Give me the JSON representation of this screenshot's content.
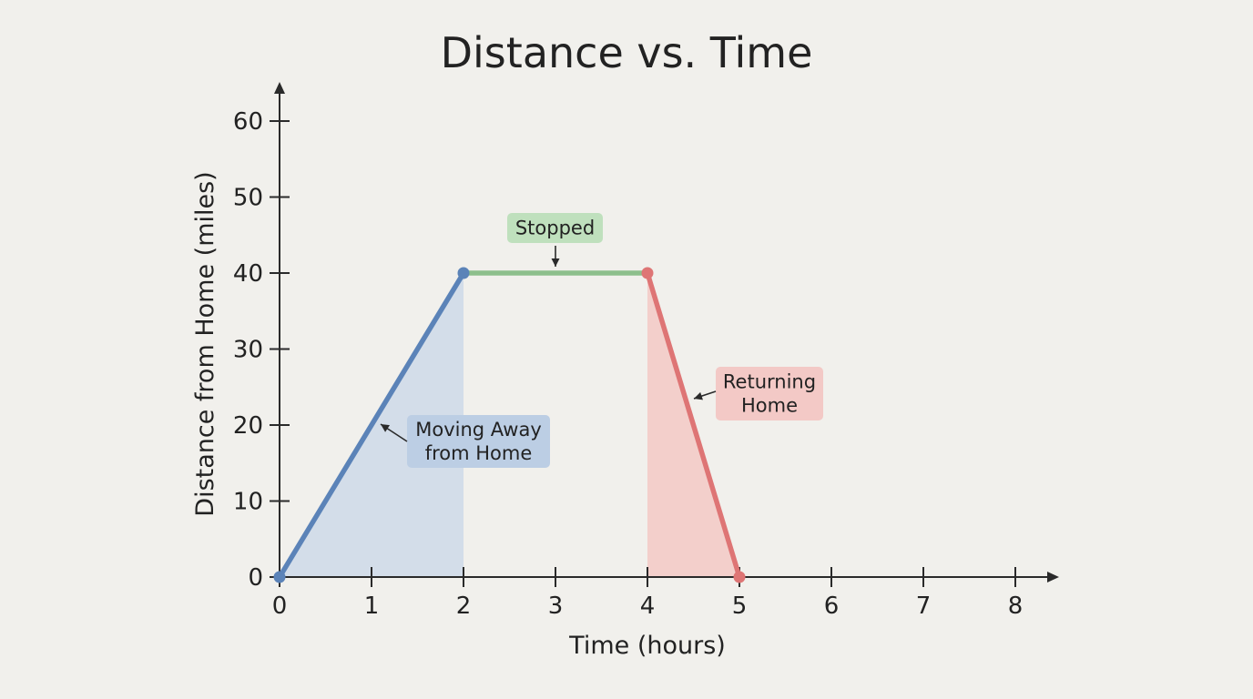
{
  "chart_data": {
    "type": "line",
    "title": "Distance vs. Time",
    "xlabel": "Time (hours)",
    "ylabel": "Distance from Home (miles)",
    "xlim": [
      0,
      8
    ],
    "ylim": [
      0,
      60
    ],
    "x_ticks": [
      0,
      1,
      2,
      3,
      4,
      5,
      6,
      7,
      8
    ],
    "y_ticks": [
      0,
      10,
      20,
      30,
      40,
      50,
      60
    ],
    "grid": false,
    "series": [
      {
        "color": "#5b83b8",
        "fill": "#d3dde9",
        "x": [
          0,
          2
        ],
        "y": [
          0,
          40
        ]
      },
      {
        "color": "#8dbf8c",
        "x": [
          2,
          4
        ],
        "y": [
          40,
          40
        ]
      },
      {
        "color": "#de7575",
        "fill": "#f3cfcb",
        "x": [
          4,
          5
        ],
        "y": [
          40,
          0
        ]
      }
    ],
    "annotations": [
      {
        "lines": [
          "Stopped"
        ],
        "bg": "#bfe0bd",
        "target": [
          3,
          40
        ]
      },
      {
        "lines": [
          "Moving Away",
          "from Home"
        ],
        "bg": "#bccee4",
        "target": [
          1.1,
          19.5
        ]
      },
      {
        "lines": [
          "Returning",
          "Home"
        ],
        "bg": "#f3c9c6",
        "target": [
          4.5,
          23
        ]
      }
    ]
  }
}
